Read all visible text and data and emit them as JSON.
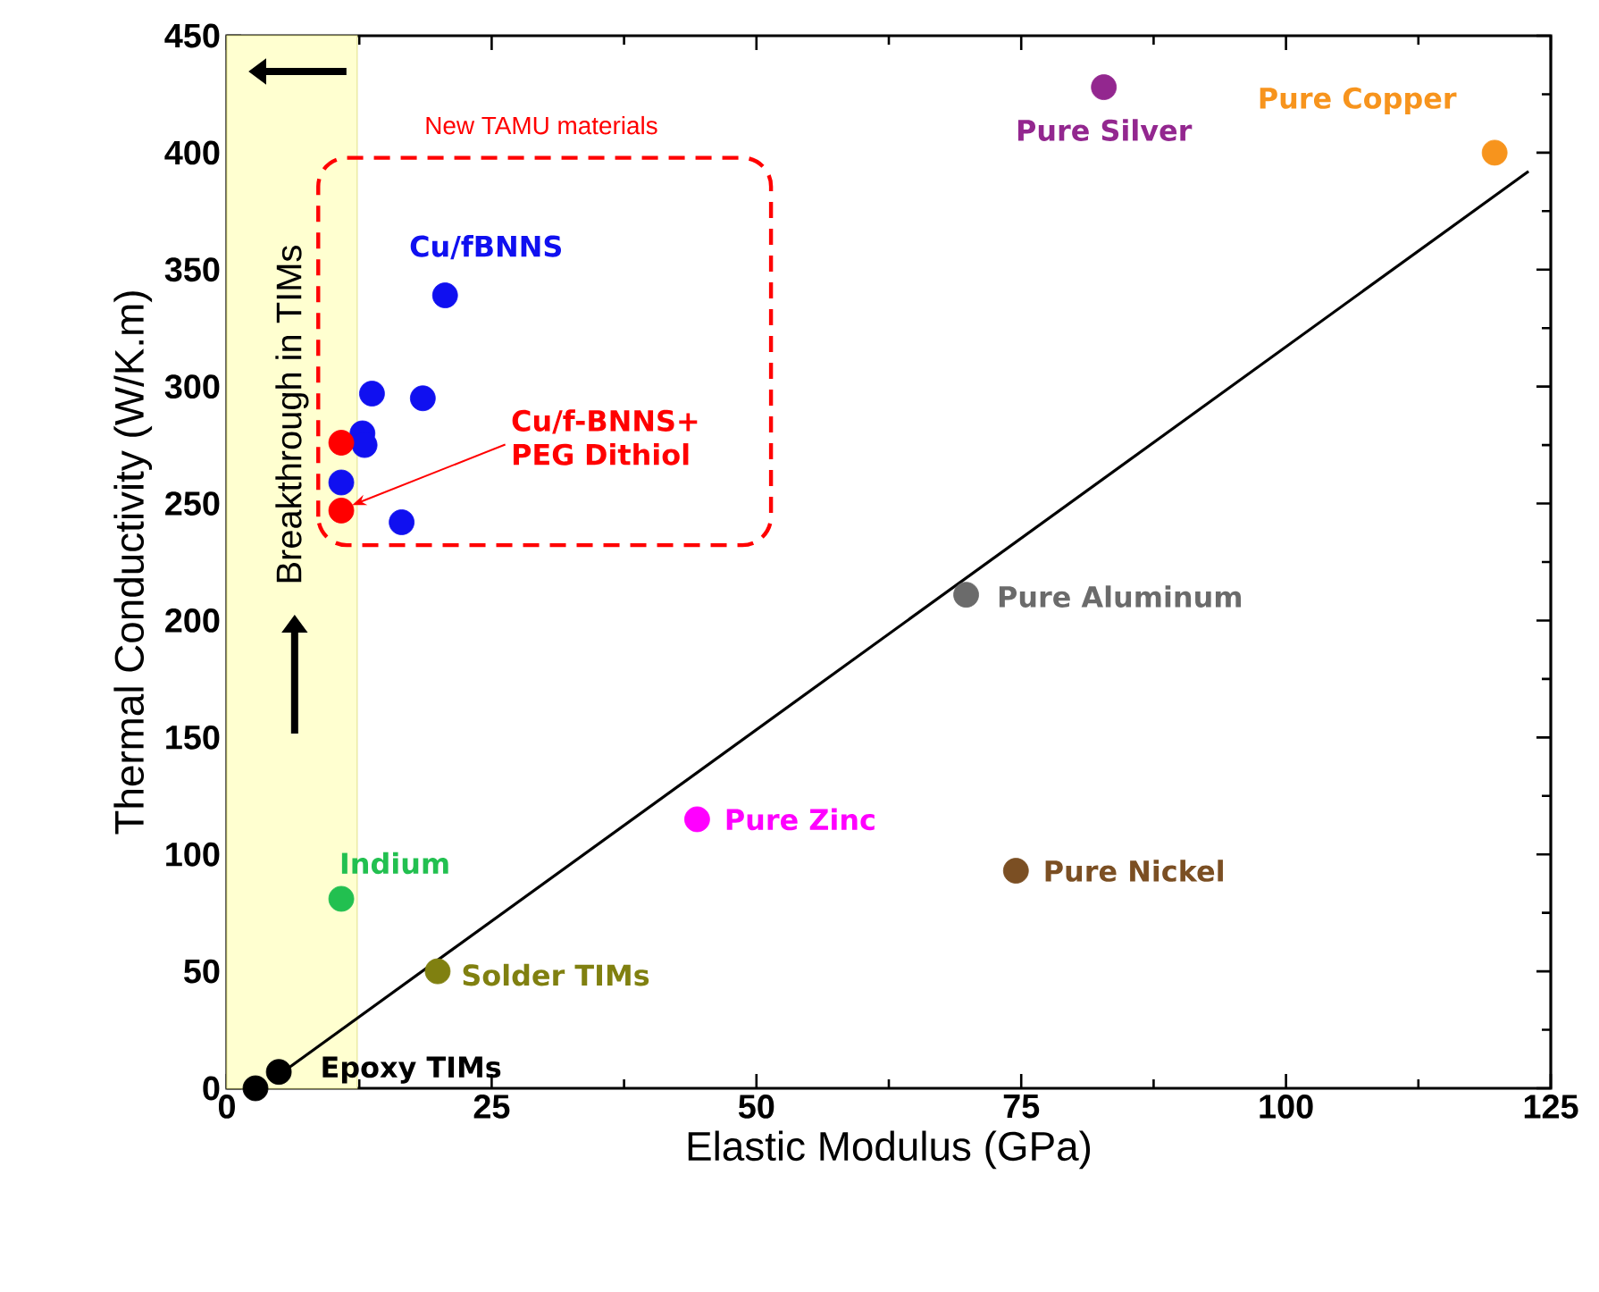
{
  "chart_data": {
    "type": "scatter",
    "xlabel": "Elastic Modulus (GPa)",
    "ylabel": "Thermal Conductivity (W/K.m)",
    "xlim": [
      0,
      125
    ],
    "ylim": [
      0,
      450
    ],
    "xticks": [
      0,
      25,
      50,
      75,
      100,
      125
    ],
    "yticks": [
      0,
      50,
      100,
      150,
      200,
      250,
      300,
      350,
      400,
      450
    ],
    "annotations": [
      "New TAMU materials"
    ],
    "bands": [
      {
        "axis": "x",
        "from": 0,
        "to": 12.3,
        "label": "Breakthrough in TIMs",
        "color": "#ffffd0"
      }
    ],
    "series": [
      {
        "name": "Cu/fBNNS",
        "color": "#1010f0",
        "x": [
          20.6,
          13.7,
          18.5,
          12.8,
          13,
          10.8,
          16.5
        ],
        "values": [
          339,
          297,
          295,
          280,
          275,
          259,
          242
        ]
      },
      {
        "name": "Cu/f-BNNS+ PEG Dithiol",
        "color": "#ff0000",
        "x": [
          10.8,
          10.8
        ],
        "values": [
          276,
          247
        ]
      },
      {
        "name": "Epoxy TIMs",
        "color": "#000000",
        "x": [
          2.7,
          4.9
        ],
        "values": [
          0,
          7
        ]
      },
      {
        "name": "Indium",
        "color": "#22c050",
        "x": [
          10.8
        ],
        "values": [
          81
        ]
      },
      {
        "name": "Solder TIMs",
        "color": "#808010",
        "x": [
          19.9
        ],
        "values": [
          50
        ]
      },
      {
        "name": "Pure Zinc",
        "color": "#ff00ff",
        "x": [
          44.4
        ],
        "values": [
          115
        ]
      },
      {
        "name": "Pure Aluminum",
        "color": "#6b6b6b",
        "x": [
          69.8
        ],
        "values": [
          211
        ]
      },
      {
        "name": "Pure Nickel",
        "color": "#7b4f23",
        "x": [
          74.5
        ],
        "values": [
          93
        ]
      },
      {
        "name": "Pure Silver",
        "color": "#93278f",
        "x": [
          82.8
        ],
        "values": [
          428
        ]
      },
      {
        "name": "Pure Copper",
        "color": "#f7941d",
        "x": [
          119.7
        ],
        "values": [
          400
        ]
      },
      {
        "type": "line",
        "color": "#000000",
        "x": [
          5,
          122.9
        ],
        "values": [
          6,
          392
        ]
      }
    ]
  }
}
